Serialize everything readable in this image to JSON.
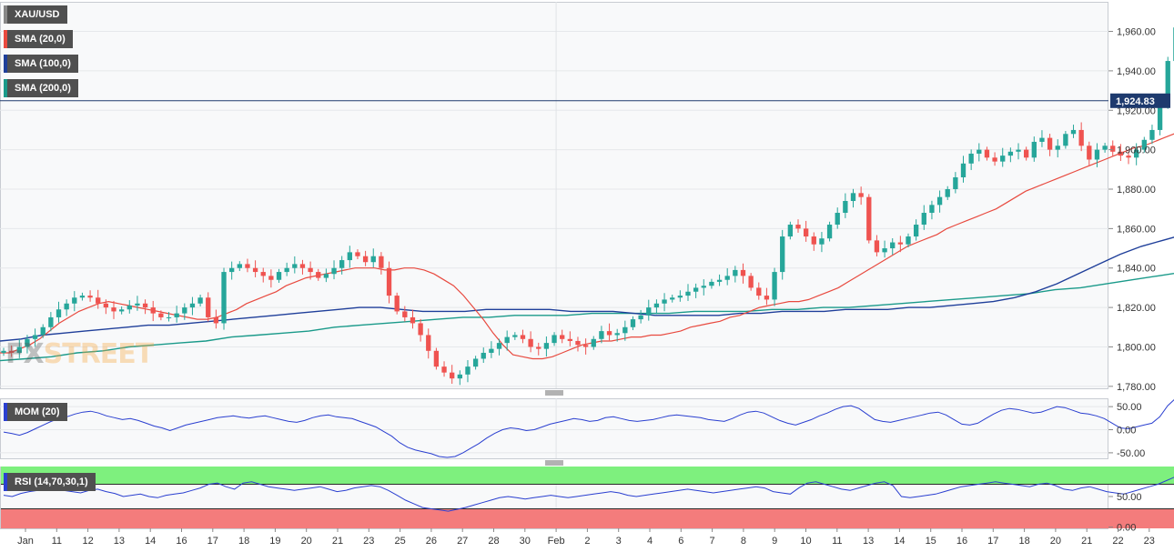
{
  "legend": {
    "symbol": "XAU/USD",
    "sma20": "SMA (20,0)",
    "sma100": "SMA (100,0)",
    "sma200": "SMA (200,0)",
    "mom": "MOM (20)",
    "rsi": "RSI (14,70,30,1)"
  },
  "watermark": {
    "fx": "FX",
    "street": "STREET"
  },
  "colors": {
    "up": "#26a69a",
    "down": "#ef5350",
    "sma20": "#e84a3f",
    "sma100": "#1f3f9a",
    "sma200": "#1a9a8a",
    "indicator": "#2a3fd0",
    "price_tag": "#1e3a6e",
    "rsi_over": "#7ef07e",
    "rsi_under": "#f47c7c"
  },
  "chart_data": [
    {
      "type": "candlestick",
      "title": "XAU/USD",
      "y_ticks": [
        "1,960.00",
        "1,940.00",
        "1,920.00",
        "1,900.00",
        "1,880.00",
        "1,860.00",
        "1,840.00",
        "1,820.00",
        "1,800.00",
        "1,780.00"
      ],
      "y_tick_values": [
        1960,
        1940,
        1920,
        1900,
        1880,
        1860,
        1840,
        1820,
        1800,
        1780
      ],
      "ylim": [
        1779,
        1975
      ],
      "last_price": 1924.83,
      "last_price_label": "1,924.83",
      "x_labels": [
        "Jan",
        "11",
        "12",
        "13",
        "14",
        "16",
        "17",
        "18",
        "19",
        "20",
        "21",
        "23",
        "25",
        "26",
        "27",
        "28",
        "30",
        "Feb",
        "2",
        "3",
        "4",
        "6",
        "7",
        "8",
        "9",
        "10",
        "11",
        "13",
        "14",
        "15",
        "16",
        "17",
        "18",
        "20",
        "21",
        "22",
        "23",
        "24",
        "25"
      ],
      "x_label_days": [
        0,
        1,
        2,
        3,
        4,
        5,
        6,
        7,
        8,
        9,
        10,
        11,
        12,
        13,
        14,
        15,
        16,
        17,
        18,
        19,
        20,
        21,
        22,
        23,
        24,
        25,
        26,
        27,
        28,
        29,
        30,
        31,
        32,
        33,
        34,
        35,
        36,
        37,
        38
      ],
      "closes": [
        1798,
        1797,
        1800,
        1804,
        1806,
        1810,
        1815,
        1819,
        1822,
        1825,
        1826,
        1825,
        1822,
        1820,
        1818,
        1819,
        1821,
        1822,
        1820,
        1817,
        1815,
        1815,
        1817,
        1820,
        1822,
        1825,
        1815,
        1812,
        1838,
        1840,
        1842,
        1840,
        1838,
        1836,
        1834,
        1838,
        1840,
        1842,
        1840,
        1838,
        1835,
        1837,
        1840,
        1844,
        1848,
        1846,
        1843,
        1846,
        1840,
        1826,
        1818,
        1815,
        1812,
        1806,
        1798,
        1790,
        1787,
        1784,
        1786,
        1790,
        1794,
        1797,
        1799,
        1802,
        1805,
        1806,
        1804,
        1800,
        1799,
        1802,
        1806,
        1804,
        1803,
        1801,
        1800,
        1804,
        1808,
        1806,
        1807,
        1810,
        1814,
        1816,
        1820,
        1822,
        1824,
        1825,
        1826,
        1828,
        1830,
        1831,
        1833,
        1834,
        1836,
        1839,
        1836,
        1830,
        1826,
        1824,
        1838,
        1856,
        1862,
        1860,
        1856,
        1852,
        1855,
        1862,
        1868,
        1874,
        1878,
        1876,
        1854,
        1848,
        1850,
        1853,
        1852,
        1856,
        1862,
        1868,
        1872,
        1876,
        1880,
        1886,
        1893,
        1898,
        1900,
        1896,
        1894,
        1897,
        1899,
        1900,
        1896,
        1904,
        1906,
        1900,
        1902,
        1908,
        1910,
        1902,
        1895,
        1900,
        1902,
        1899,
        1897,
        1896,
        1900,
        1905,
        1910,
        1924,
        1945,
        1962,
        1924.83
      ],
      "sma20": [
        1797,
        1797,
        1799,
        1801,
        1804,
        1808,
        1812,
        1815,
        1818,
        1820,
        1822,
        1823,
        1822,
        1821,
        1820,
        1819,
        1818,
        1817,
        1816,
        1815,
        1814,
        1814,
        1815,
        1817,
        1819,
        1822,
        1824,
        1826,
        1828,
        1831,
        1833,
        1835,
        1836,
        1837,
        1838,
        1839,
        1840,
        1840,
        1840,
        1839,
        1839,
        1840,
        1840,
        1839,
        1837,
        1834,
        1831,
        1826,
        1820,
        1814,
        1807,
        1801,
        1796,
        1795,
        1794,
        1794,
        1795,
        1797,
        1799,
        1801,
        1802,
        1803,
        1803,
        1804,
        1805,
        1805,
        1806,
        1806,
        1807,
        1808,
        1810,
        1811,
        1812,
        1813,
        1815,
        1816,
        1818,
        1820,
        1821,
        1822,
        1823,
        1823,
        1824,
        1826,
        1828,
        1830,
        1833,
        1836,
        1839,
        1842,
        1845,
        1848,
        1851,
        1853,
        1855,
        1857,
        1860,
        1862,
        1864,
        1866,
        1868,
        1870,
        1873,
        1876,
        1879,
        1881,
        1883,
        1885,
        1887,
        1889,
        1891,
        1893,
        1895,
        1897,
        1899,
        1901,
        1902,
        1904,
        1906,
        1908,
        1910
      ],
      "sma100": [
        1803,
        1804,
        1806,
        1807,
        1808,
        1809,
        1810,
        1811,
        1811,
        1812,
        1813,
        1814,
        1815,
        1816,
        1817,
        1818,
        1819,
        1820,
        1820,
        1819,
        1818,
        1818,
        1818,
        1819,
        1819,
        1819,
        1819,
        1818,
        1818,
        1818,
        1817,
        1816,
        1816,
        1816,
        1816,
        1817,
        1817,
        1818,
        1818,
        1818,
        1819,
        1819,
        1819,
        1820,
        1820,
        1821,
        1822,
        1823,
        1825,
        1828,
        1832,
        1837,
        1842,
        1847,
        1851,
        1854,
        1857
      ],
      "sma200": [
        1793,
        1794,
        1795,
        1797,
        1798,
        1800,
        1801,
        1802,
        1803,
        1805,
        1806,
        1807,
        1808,
        1810,
        1811,
        1812,
        1813,
        1814,
        1815,
        1815,
        1816,
        1816,
        1816,
        1817,
        1817,
        1817,
        1817,
        1818,
        1818,
        1818,
        1819,
        1819,
        1820,
        1820,
        1821,
        1822,
        1823,
        1824,
        1825,
        1826,
        1827,
        1829,
        1830,
        1832,
        1834,
        1836,
        1838
      ]
    },
    {
      "type": "line",
      "title": "MOM (20)",
      "y_ticks": [
        "50.00",
        "0.00",
        "-50.00"
      ],
      "y_tick_values": [
        50,
        0,
        -50
      ],
      "ylim": [
        -62,
        68
      ],
      "values": [
        -5,
        -8,
        -12,
        -6,
        2,
        10,
        18,
        24,
        28,
        34,
        38,
        40,
        36,
        30,
        26,
        22,
        24,
        20,
        14,
        8,
        4,
        -2,
        4,
        10,
        14,
        18,
        22,
        26,
        28,
        30,
        27,
        25,
        28,
        30,
        26,
        22,
        18,
        16,
        20,
        26,
        30,
        32,
        28,
        26,
        24,
        18,
        12,
        6,
        -4,
        -14,
        -28,
        -38,
        -44,
        -48,
        -52,
        -58,
        -60,
        -58,
        -50,
        -40,
        -30,
        -18,
        -8,
        0,
        4,
        2,
        -2,
        0,
        6,
        12,
        16,
        20,
        24,
        22,
        18,
        20,
        26,
        28,
        24,
        20,
        18,
        20,
        22,
        26,
        30,
        32,
        30,
        28,
        26,
        22,
        20,
        18,
        24,
        32,
        38,
        40,
        36,
        28,
        20,
        14,
        10,
        16,
        22,
        30,
        36,
        44,
        50,
        52,
        46,
        34,
        22,
        18,
        16,
        20,
        24,
        28,
        32,
        36,
        38,
        32,
        22,
        12,
        10,
        14,
        24,
        34,
        42,
        46,
        44,
        40,
        36,
        38,
        44,
        50,
        48,
        42,
        36,
        34,
        30,
        24,
        14,
        4,
        2,
        6,
        10,
        14,
        28,
        52,
        68,
        26
      ]
    },
    {
      "type": "line",
      "title": "RSI (14,70,30,1)",
      "y_ticks": [
        "50.00",
        "0.00"
      ],
      "y_tick_values": [
        50,
        0
      ],
      "ylim": [
        -2,
        99
      ],
      "overbought": 70,
      "oversold": 30,
      "values": [
        52,
        50,
        55,
        58,
        60,
        62,
        64,
        60,
        58,
        56,
        60,
        62,
        58,
        55,
        50,
        52,
        54,
        50,
        48,
        52,
        54,
        56,
        60,
        64,
        70,
        72,
        66,
        62,
        72,
        74,
        70,
        66,
        64,
        62,
        60,
        62,
        64,
        66,
        62,
        58,
        60,
        64,
        66,
        68,
        66,
        60,
        52,
        44,
        38,
        32,
        30,
        28,
        26,
        29,
        32,
        36,
        40,
        44,
        48,
        50,
        48,
        46,
        48,
        50,
        52,
        50,
        48,
        50,
        52,
        54,
        56,
        58,
        56,
        52,
        50,
        52,
        54,
        56,
        58,
        60,
        62,
        60,
        58,
        56,
        58,
        60,
        62,
        64,
        66,
        64,
        58,
        56,
        54,
        64,
        72,
        74,
        70,
        66,
        62,
        60,
        64,
        68,
        72,
        74,
        68,
        50,
        48,
        50,
        52,
        54,
        58,
        62,
        66,
        68,
        70,
        72,
        74,
        72,
        70,
        68,
        66,
        70,
        72,
        68,
        62,
        60,
        64,
        66,
        62,
        58,
        56,
        54,
        58,
        62,
        66,
        70,
        76,
        82,
        60
      ]
    }
  ]
}
